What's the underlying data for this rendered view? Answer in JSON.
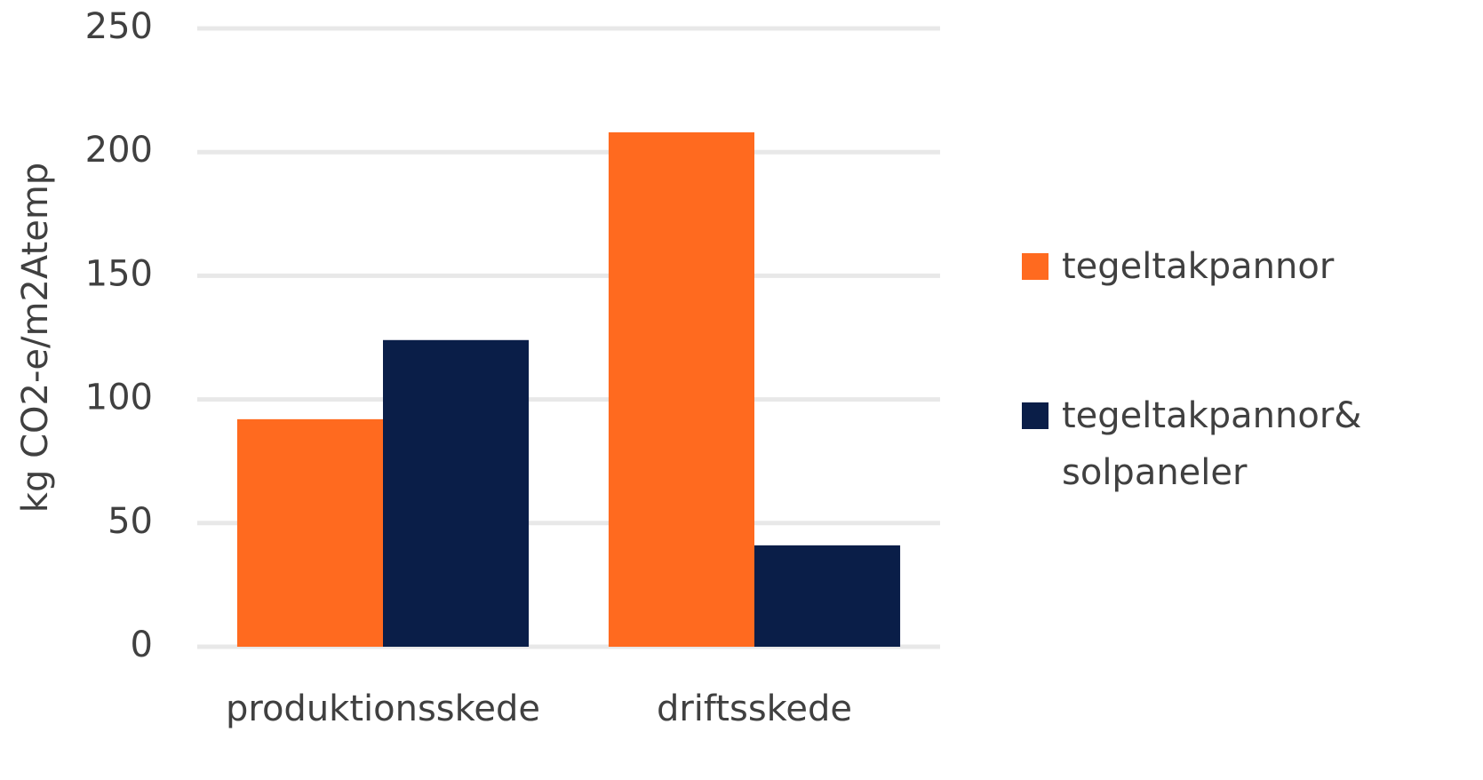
{
  "chart_data": {
    "type": "bar",
    "y_label": "kg CO2-e/m2Atemp",
    "categories": [
      "produktionsskede",
      "driftsskede"
    ],
    "series": [
      {
        "name": "tegeltakpannor",
        "color": "#ff6a1f",
        "values": [
          92,
          208
        ]
      },
      {
        "name": "tegeltakpannor& solpaneler",
        "color": "#0a1e48",
        "values": [
          124,
          41
        ]
      }
    ],
    "ylim": [
      0,
      250
    ],
    "yticks": [
      0,
      50,
      100,
      150,
      200,
      250
    ],
    "grid": true,
    "legend": "right"
  }
}
